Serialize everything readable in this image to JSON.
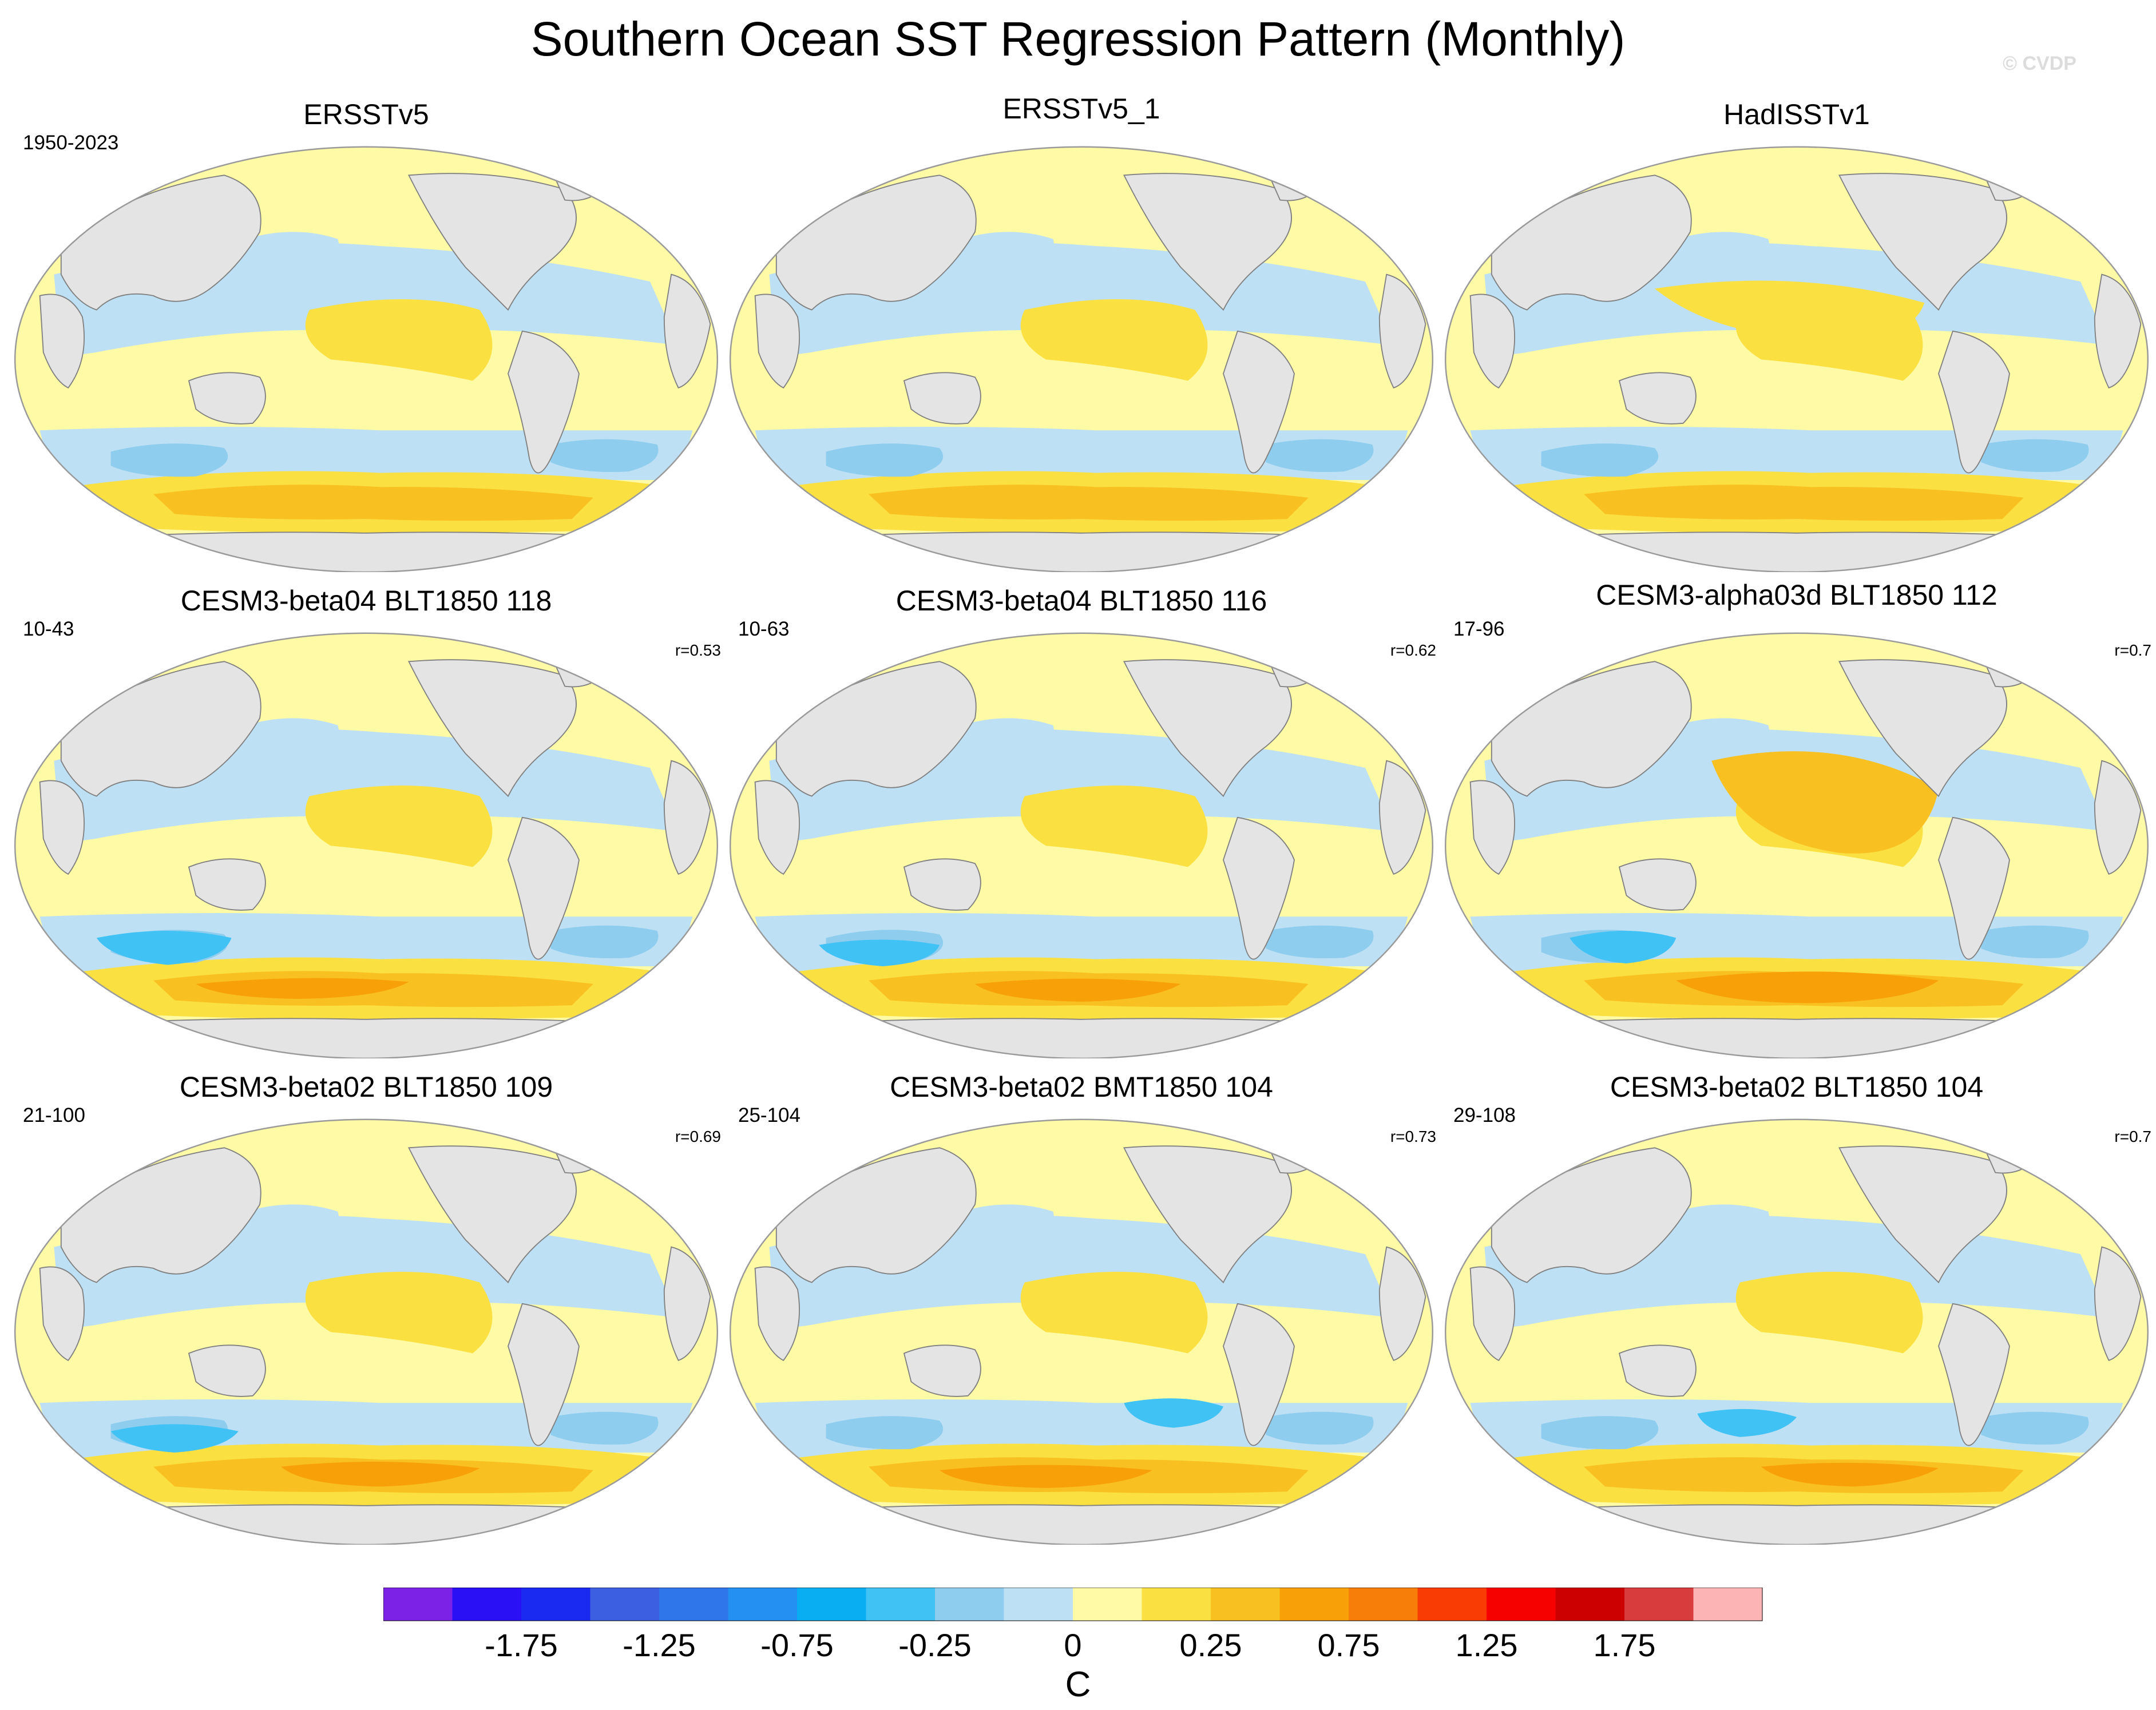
{
  "title": "Southern Ocean SST Regression Pattern (Monthly)",
  "watermark": "© CVDP",
  "chart_data": {
    "type": "heatmap",
    "description_projection": "Robinson global map panels, Pacific-centered",
    "colorbar": {
      "unit": "C",
      "boundaries": [
        -2.0,
        -1.75,
        -1.5,
        -1.25,
        -1.0,
        -0.75,
        -0.5,
        -0.25,
        -0.1,
        0,
        0.1,
        0.25,
        0.5,
        0.75,
        1.0,
        1.25,
        1.5,
        1.75,
        2.0
      ],
      "tick_labels": [
        "-1.75",
        "-1.25",
        "-0.75",
        "-0.25",
        "0",
        "0.25",
        "0.75",
        "1.25",
        "1.75"
      ],
      "colors": [
        "#7b22e6",
        "#2a10f5",
        "#1a2af0",
        "#3c5ee0",
        "#2f76ea",
        "#2390f2",
        "#09aef2",
        "#41c2f4",
        "#8ecdee",
        "#bde0f4",
        "#fefaa6",
        "#fbe042",
        "#f8c020",
        "#f8a008",
        "#f87e0a",
        "#f83c04",
        "#f60000",
        "#cc0000",
        "#d83c3c",
        "#fcb4b4"
      ]
    },
    "panels": [
      {
        "title": "ERSSTv5",
        "years": "1950-2023",
        "corr": ""
      },
      {
        "title": "ERSSTv5_1",
        "years": "",
        "corr": ""
      },
      {
        "title": "HadISSTv1",
        "years": "",
        "corr": ""
      },
      {
        "title": "CESM3-beta04 BLT1850 118",
        "years": "10-43",
        "corr": "r=0.53"
      },
      {
        "title": "CESM3-beta04 BLT1850 116",
        "years": "10-63",
        "corr": "r=0.62"
      },
      {
        "title": "CESM3-alpha03d BLT1850 112",
        "years": "17-96",
        "corr": "r=0.7"
      },
      {
        "title": "CESM3-beta02 BLT1850 109",
        "years": "21-100",
        "corr": "r=0.69"
      },
      {
        "title": "CESM3-beta02 BMT1850 104",
        "years": "25-104",
        "corr": "r=0.73"
      },
      {
        "title": "CESM3-beta02 BLT1850 104",
        "years": "29-108",
        "corr": "r=0.7"
      }
    ]
  },
  "colors": {
    "land": "#e4e4e4",
    "coast": "#808080",
    "warm_light": "#fefaa6",
    "warm_mid": "#fbe042",
    "warm_strong": "#f8c020",
    "warm_stronger": "#f8a008",
    "cool_light": "#bde0f4",
    "cool_mid": "#8ecdee",
    "cool_strong": "#41c2f4",
    "cool_stronger": "#2390f2"
  }
}
